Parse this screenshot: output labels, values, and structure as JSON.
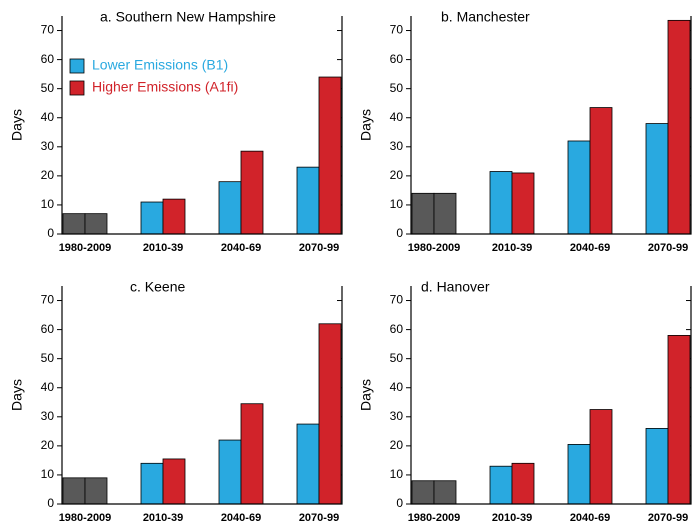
{
  "chart_data": [
    {
      "type": "bar",
      "title": "a. Southern New Hampshire",
      "ylabel": "Days",
      "categories": [
        "1980-2009",
        "2010-39",
        "2040-69",
        "2070-99"
      ],
      "series": [
        {
          "name": "Lower Emissions (B1)",
          "color": "#29a9e0",
          "colors": [
            "#595959",
            "#29a9e0",
            "#29a9e0",
            "#29a9e0"
          ],
          "values": [
            7,
            11,
            18,
            23
          ]
        },
        {
          "name": "Higher Emissions (A1fi)",
          "color": "#d1232a",
          "colors": [
            "#595959",
            "#d1232a",
            "#d1232a",
            "#d1232a"
          ],
          "values": [
            7,
            12,
            28.5,
            54
          ]
        }
      ],
      "ylim": [
        0,
        75
      ],
      "yticks": [
        0,
        10,
        20,
        30,
        40,
        50,
        60,
        70
      ],
      "legend": "upper left"
    },
    {
      "type": "bar",
      "title": "b. Manchester",
      "ylabel": "Days",
      "categories": [
        "1980-2009",
        "2010-39",
        "2040-69",
        "2070-99"
      ],
      "series": [
        {
          "color": "#29a9e0",
          "colors": [
            "#595959",
            "#29a9e0",
            "#29a9e0",
            "#29a9e0"
          ],
          "values": [
            14,
            21.5,
            32,
            38
          ]
        },
        {
          "color": "#d1232a",
          "colors": [
            "#595959",
            "#d1232a",
            "#d1232a",
            "#d1232a"
          ],
          "values": [
            14,
            21,
            43.5,
            73.5
          ]
        }
      ],
      "ylim": [
        0,
        75
      ],
      "yticks": [
        0,
        10,
        20,
        30,
        40,
        50,
        60,
        70
      ]
    },
    {
      "type": "bar",
      "title": "c. Keene",
      "ylabel": "Days",
      "categories": [
        "1980-2009",
        "2010-39",
        "2040-69",
        "2070-99"
      ],
      "series": [
        {
          "color": "#29a9e0",
          "colors": [
            "#595959",
            "#29a9e0",
            "#29a9e0",
            "#29a9e0"
          ],
          "values": [
            9,
            14,
            22,
            27.5
          ]
        },
        {
          "color": "#d1232a",
          "colors": [
            "#595959",
            "#d1232a",
            "#d1232a",
            "#d1232a"
          ],
          "values": [
            9,
            15.5,
            34.5,
            62
          ]
        }
      ],
      "ylim": [
        0,
        75
      ],
      "yticks": [
        0,
        10,
        20,
        30,
        40,
        50,
        60,
        70
      ]
    },
    {
      "type": "bar",
      "title": "d. Hanover",
      "ylabel": "Days",
      "categories": [
        "1980-2009",
        "2010-39",
        "2040-69",
        "2070-99"
      ],
      "series": [
        {
          "color": "#29a9e0",
          "colors": [
            "#595959",
            "#29a9e0",
            "#29a9e0",
            "#29a9e0"
          ],
          "values": [
            8,
            13,
            20.5,
            26
          ]
        },
        {
          "color": "#d1232a",
          "colors": [
            "#595959",
            "#d1232a",
            "#d1232a",
            "#d1232a"
          ],
          "values": [
            8,
            14,
            32.5,
            58
          ]
        }
      ],
      "ylim": [
        0,
        75
      ],
      "yticks": [
        0,
        10,
        20,
        30,
        40,
        50,
        60,
        70
      ]
    }
  ]
}
